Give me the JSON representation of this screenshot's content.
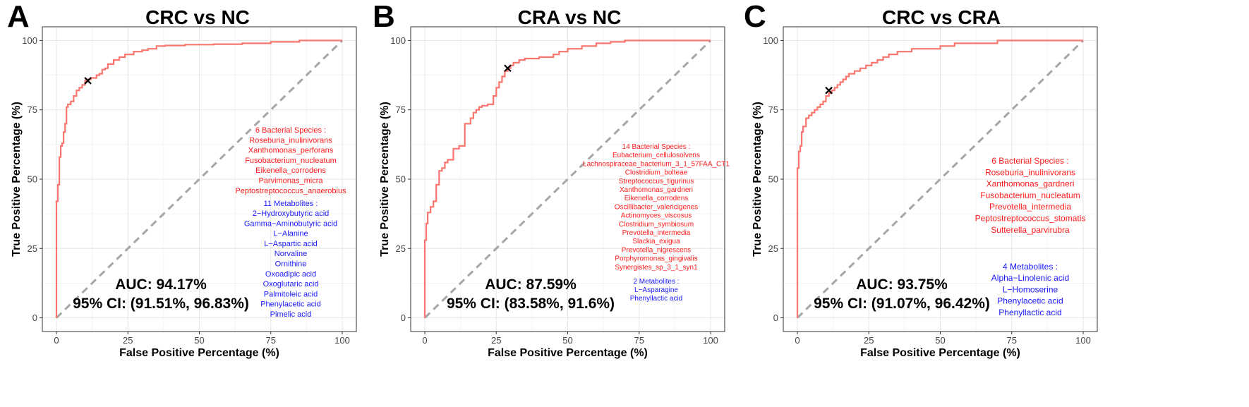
{
  "chart_data": [
    {
      "type": "line",
      "panel_label": "A",
      "title": "CRC vs NC",
      "xlabel": "False Positive Percentage (%)",
      "ylabel": "True Positive Percentage (%)",
      "xlim": [
        0,
        100
      ],
      "ylim": [
        0,
        100
      ],
      "xticks": [
        "0",
        "25",
        "50",
        "75",
        "100"
      ],
      "yticks": [
        "0",
        "25",
        "50",
        "75",
        "100"
      ],
      "grid": true,
      "series": [
        {
          "color": "#f8766d",
          "x": [
            0,
            0,
            0.5,
            0.5,
            1,
            1,
            1.5,
            1.5,
            2,
            2,
            2.5,
            2.5,
            3,
            3,
            3.5,
            3.5,
            4,
            4,
            5,
            5,
            6,
            6,
            7,
            7,
            8,
            8,
            9,
            9,
            10,
            10,
            11,
            11,
            12,
            12,
            14,
            14,
            15,
            15,
            16,
            16,
            17,
            17,
            18,
            18,
            20,
            20,
            22,
            22,
            24,
            24,
            27,
            27,
            30,
            30,
            32,
            32,
            35,
            35,
            38,
            38,
            45,
            45,
            55,
            55,
            65,
            65,
            75,
            75,
            85,
            85,
            100
          ],
          "y": [
            0,
            42,
            42,
            48,
            48,
            58,
            58,
            62,
            62,
            63,
            63,
            67,
            67,
            70,
            70,
            76,
            76,
            77,
            77,
            78,
            78,
            80,
            80,
            82,
            82,
            83,
            83,
            84,
            84,
            85.5,
            85.5,
            86,
            86,
            86.5,
            86.5,
            87.5,
            87.5,
            88,
            88,
            89.5,
            89.5,
            90,
            90,
            91.5,
            91.5,
            93,
            93,
            94,
            94,
            95,
            95,
            96,
            96,
            96.5,
            96.5,
            97,
            97,
            98,
            98,
            98.2,
            98.2,
            98.5,
            98.5,
            98.7,
            98.7,
            99,
            99,
            99.5,
            99.5,
            100,
            100
          ]
        }
      ],
      "marker": {
        "x": 11,
        "y": 85.5
      },
      "auc_label": "AUC: 94.17%",
      "ci_label": "95% CI: (91.51%, 96.83%)",
      "species_header": "6 Bacterial Species :",
      "species": [
        "Roseburia_inulinivorans",
        "Xanthomonas_perforans",
        "Fusobacterium_nucleatum",
        "Eikenella_corrodens",
        "Parvimonas_micra",
        "Peptostreptococcus_anaerobius"
      ],
      "metabolites_header": "11 Metabolites :",
      "metabolites": [
        "2−Hydroxybutyric acid",
        "Gamma−Aminobutyric acid",
        "L−Alanine",
        "L−Aspartic acid",
        "Norvaline",
        "Ornithine",
        "Oxoadipic acid",
        "Oxoglutaric acid",
        "Palmitoleic acid",
        "Phenylacetic acid",
        "Pimelic acid"
      ]
    },
    {
      "type": "line",
      "panel_label": "B",
      "title": "CRA vs NC",
      "xlabel": "False Positive Percentage (%)",
      "ylabel": "True Positive Percentage (%)",
      "xlim": [
        0,
        100
      ],
      "ylim": [
        0,
        100
      ],
      "xticks": [
        "0",
        "25",
        "50",
        "75",
        "100"
      ],
      "yticks": [
        "0",
        "25",
        "50",
        "75",
        "100"
      ],
      "grid": true,
      "series": [
        {
          "color": "#f8766d",
          "x": [
            0,
            0,
            0.5,
            0.5,
            1,
            1,
            2,
            2,
            3,
            3,
            4,
            4,
            5,
            5,
            6,
            6,
            7,
            7,
            8,
            8,
            10,
            10,
            12,
            12,
            14,
            14,
            16,
            16,
            17,
            17,
            18,
            18,
            19,
            19,
            20,
            20,
            22,
            22,
            24,
            24,
            25,
            25,
            26,
            26,
            27,
            27,
            28,
            28,
            29,
            29,
            30,
            30,
            31,
            31,
            33,
            33,
            35,
            35,
            40,
            40,
            45,
            45,
            47,
            47,
            50,
            50,
            55,
            55,
            60,
            60,
            65,
            65,
            70,
            70,
            75,
            75,
            85,
            85,
            100
          ],
          "y": [
            0,
            28,
            28,
            34,
            34,
            38,
            38,
            40,
            40,
            42,
            42,
            48,
            48,
            53,
            53,
            54,
            54,
            56,
            56,
            57,
            57,
            61,
            61,
            62,
            62,
            70,
            70,
            72,
            72,
            74,
            74,
            75,
            75,
            76,
            76,
            76.5,
            76.5,
            77,
            77,
            80,
            80,
            83,
            83,
            85,
            85,
            87,
            87,
            89,
            89,
            90,
            90,
            91,
            91,
            92,
            92,
            93,
            93,
            93.5,
            93.5,
            94,
            94,
            95,
            95,
            96,
            96,
            97,
            97,
            98,
            98,
            99,
            99,
            99.5,
            99.5,
            100,
            100,
            100,
            100,
            100,
            100
          ]
        }
      ],
      "marker": {
        "x": 29,
        "y": 90
      },
      "auc_label": "AUC: 87.59%",
      "ci_label": "95% CI: (83.58%, 91.6%)",
      "species_header": "14 Bacterial Species :",
      "species": [
        "Eubacterium_cellulosolvens",
        "Lachnospiraceae_bacterium_3_1_57FAA_CT1",
        "Clostridium_bolteae",
        "Streptococcus_tigurinus",
        "Xanthomonas_gardneri",
        "Eikenella_corrodens",
        "Oscillibacter_valericigenes",
        "Actinomyces_viscosus",
        "Clostridium_symbiosum",
        "Prevotella_intermedia",
        "Slackia_exigua",
        "Prevotella_nigrescens",
        "Porphyromonas_gingivalis",
        "Synergistes_sp_3_1_syn1"
      ],
      "metabolites_header": "2 Metabolites :",
      "metabolites": [
        "L−Asparagine",
        "Phenyllactic acid"
      ]
    },
    {
      "type": "line",
      "panel_label": "C",
      "title": "CRC vs CRA",
      "xlabel": "False Positive Percentage (%)",
      "ylabel": "True Positive Percentage (%)",
      "xlim": [
        0,
        100
      ],
      "ylim": [
        0,
        100
      ],
      "xticks": [
        "0",
        "25",
        "50",
        "75",
        "100"
      ],
      "yticks": [
        "0",
        "25",
        "50",
        "75",
        "100"
      ],
      "grid": true,
      "series": [
        {
          "color": "#f8766d",
          "x": [
            0,
            0,
            0.5,
            0.5,
            1,
            1,
            1.5,
            1.5,
            2,
            2,
            3,
            3,
            4,
            4,
            5,
            5,
            6,
            6,
            7,
            7,
            8,
            8,
            9,
            9,
            10,
            10,
            11,
            11,
            12,
            12,
            13,
            13,
            14,
            14,
            15,
            15,
            16,
            16,
            17,
            17,
            18,
            18,
            20,
            20,
            22,
            22,
            24,
            24,
            26,
            26,
            28,
            28,
            30,
            30,
            32,
            32,
            35,
            35,
            40,
            40,
            50,
            50,
            55,
            55,
            70,
            70,
            100
          ],
          "y": [
            0,
            54,
            54,
            60,
            60,
            62,
            62,
            67,
            67,
            69,
            69,
            72,
            72,
            73,
            73,
            74,
            74,
            75,
            75,
            76,
            76,
            77,
            77,
            78,
            78,
            80,
            80,
            81,
            81,
            82,
            82,
            83,
            83,
            84,
            84,
            85,
            85,
            86,
            86,
            87,
            87,
            88,
            88,
            89,
            89,
            90,
            90,
            91,
            91,
            92,
            92,
            93,
            93,
            94,
            94,
            95,
            95,
            96,
            96,
            97,
            97,
            98,
            98,
            99,
            99,
            100,
            100
          ]
        }
      ],
      "marker": {
        "x": 11,
        "y": 82
      },
      "auc_label": "AUC: 93.75%",
      "ci_label": "95% CI: (91.07%, 96.42%)",
      "species_header": "6 Bacterial Species :",
      "species": [
        "Roseburia_inulinivorans",
        "Xanthomonas_gardneri",
        "Fusobacterium_nucleatum",
        "Prevotella_intermedia",
        "Peptostreptococcus_stomatis",
        "Sutterella_parvirubra"
      ],
      "metabolites_header": "4 Metabolites :",
      "metabolites": [
        "Alpha−Linolenic acid",
        "L−Homoserine",
        "Phenylacetic acid",
        "Phenyllactic acid"
      ]
    }
  ]
}
